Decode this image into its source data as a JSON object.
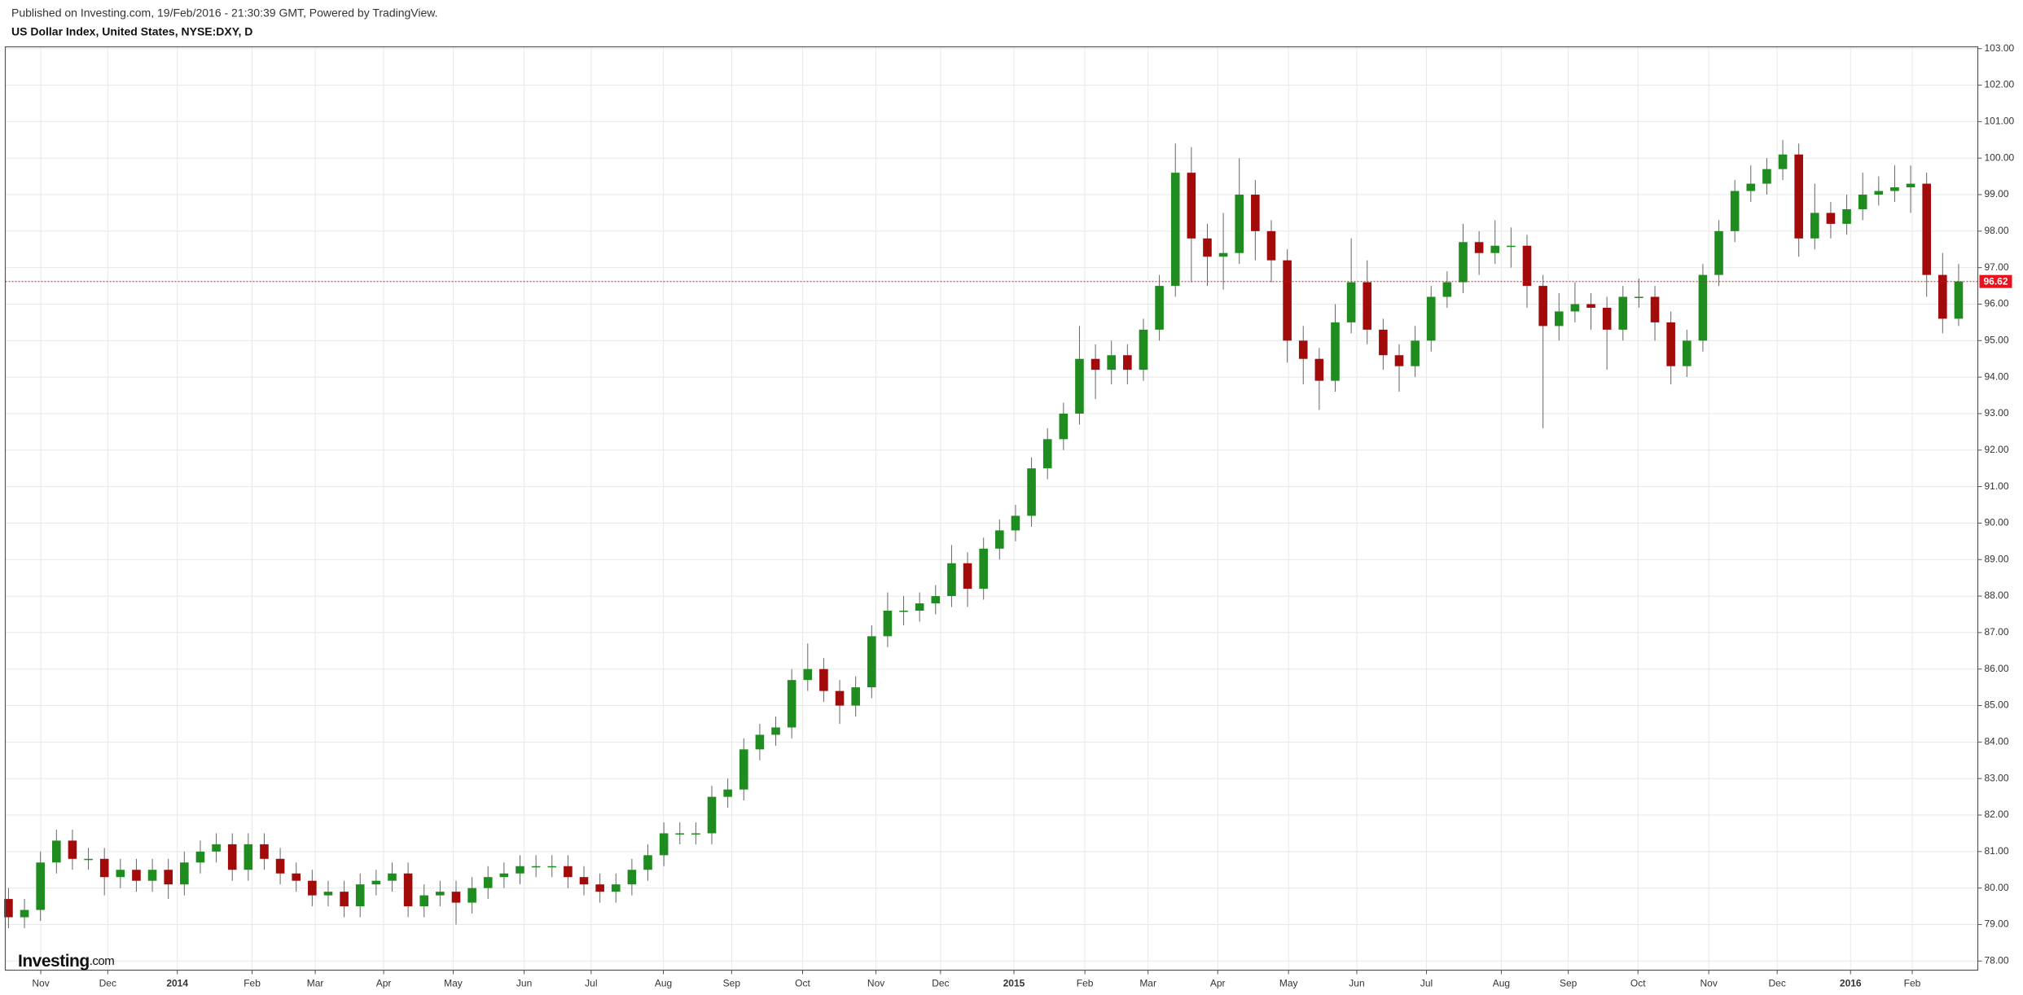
{
  "header": {
    "published": "Published on Investing.com, 19/Feb/2016 - 21:30:39 GMT, Powered by TradingView."
  },
  "logo": {
    "main": "Investing",
    "suffix": ".com"
  },
  "chart_data": {
    "type": "candlestick",
    "title": "US Dollar Index, United States, NYSE:DXY, D",
    "up_color": "#1e8c1e",
    "down_color": "#a30b0b",
    "last_price_color": "#e8111d",
    "grid": true,
    "xlim": [
      -0.2,
      123.2
    ],
    "ylim": [
      77.75,
      103.05
    ],
    "xticks": [
      {
        "value": 2.02,
        "label": "Nov"
      },
      {
        "value": 6.21,
        "label": "Dec"
      },
      {
        "value": 10.56,
        "label": "2014"
      },
      {
        "value": 15.24,
        "label": "Feb"
      },
      {
        "value": 19.19,
        "label": "Mar"
      },
      {
        "value": 23.47,
        "label": "Apr"
      },
      {
        "value": 27.82,
        "label": "May"
      },
      {
        "value": 32.26,
        "label": "Jun"
      },
      {
        "value": 36.45,
        "label": "Jul"
      },
      {
        "value": 40.97,
        "label": "Aug"
      },
      {
        "value": 45.24,
        "label": "Sep"
      },
      {
        "value": 49.68,
        "label": "Oct"
      },
      {
        "value": 54.27,
        "label": "Nov"
      },
      {
        "value": 58.31,
        "label": "Dec"
      },
      {
        "value": 62.9,
        "label": "2015"
      },
      {
        "value": 67.34,
        "label": "Feb"
      },
      {
        "value": 71.29,
        "label": "Mar"
      },
      {
        "value": 75.65,
        "label": "Apr"
      },
      {
        "value": 80.08,
        "label": "May"
      },
      {
        "value": 84.35,
        "label": "Jun"
      },
      {
        "value": 88.71,
        "label": "Jul"
      },
      {
        "value": 93.39,
        "label": "Aug"
      },
      {
        "value": 97.58,
        "label": "Sep"
      },
      {
        "value": 101.94,
        "label": "Oct"
      },
      {
        "value": 106.37,
        "label": "Nov"
      },
      {
        "value": 110.65,
        "label": "Dec"
      },
      {
        "value": 115.24,
        "label": "2016"
      },
      {
        "value": 119.1,
        "label": "Feb"
      }
    ],
    "yticks": [
      {
        "value": 78,
        "label": "78.00"
      },
      {
        "value": 79,
        "label": "79.00"
      },
      {
        "value": 80,
        "label": "80.00"
      },
      {
        "value": 81,
        "label": "81.00"
      },
      {
        "value": 82,
        "label": "82.00"
      },
      {
        "value": 83,
        "label": "83.00"
      },
      {
        "value": 84,
        "label": "84.00"
      },
      {
        "value": 85,
        "label": "85.00"
      },
      {
        "value": 86,
        "label": "86.00"
      },
      {
        "value": 87,
        "label": "87.00"
      },
      {
        "value": 88,
        "label": "88.00"
      },
      {
        "value": 89,
        "label": "89.00"
      },
      {
        "value": 90,
        "label": "90.00"
      },
      {
        "value": 91,
        "label": "91.00"
      },
      {
        "value": 92,
        "label": "92.00"
      },
      {
        "value": 93,
        "label": "93.00"
      },
      {
        "value": 94,
        "label": "94.00"
      },
      {
        "value": 95,
        "label": "95.00"
      },
      {
        "value": 96,
        "label": "96.00"
      },
      {
        "value": 97,
        "label": "97.00"
      },
      {
        "value": 98,
        "label": "98.00"
      },
      {
        "value": 99,
        "label": "99.00"
      },
      {
        "value": 100,
        "label": "100.00"
      },
      {
        "value": 101,
        "label": "101.00"
      },
      {
        "value": 102,
        "label": "102.00"
      },
      {
        "value": 103,
        "label": "103.00"
      }
    ],
    "open": [
      79.7,
      79.2,
      79.4,
      80.7,
      81.3,
      80.8,
      80.8,
      80.3,
      80.5,
      80.2,
      80.5,
      80.1,
      80.7,
      81.0,
      81.2,
      80.5,
      81.2,
      80.8,
      80.4,
      80.2,
      79.8,
      79.9,
      79.5,
      80.1,
      80.2,
      80.4,
      79.5,
      79.8,
      79.9,
      79.6,
      80.0,
      80.3,
      80.4,
      80.6,
      80.6,
      80.6,
      80.3,
      80.1,
      79.9,
      80.1,
      80.5,
      80.9,
      81.5,
      81.5,
      81.5,
      82.5,
      82.7,
      83.8,
      84.2,
      84.4,
      85.7,
      86.0,
      85.4,
      85.0,
      85.5,
      86.9,
      87.6,
      87.6,
      87.8,
      88.0,
      88.9,
      88.2,
      89.3,
      89.8,
      90.2,
      91.5,
      92.3,
      93.0,
      94.5,
      94.2,
      94.6,
      94.2,
      95.3,
      96.5,
      99.6,
      97.8,
      97.3,
      97.4,
      99.0,
      98.0,
      97.2,
      95.0,
      94.5,
      93.9,
      95.5,
      96.6,
      95.3,
      94.6,
      94.3,
      95.0,
      96.2,
      96.6,
      97.7,
      97.4,
      97.6,
      97.6,
      96.5,
      95.4,
      95.8,
      96.0,
      95.9,
      95.3,
      96.2,
      96.2,
      95.5,
      94.3,
      95.0,
      96.8,
      98.0,
      99.1,
      99.3,
      99.7,
      100.1,
      97.8,
      98.5,
      98.2,
      98.6,
      99.0,
      99.1,
      99.2,
      99.3,
      96.8,
      95.6
    ],
    "high": [
      80.0,
      79.7,
      81.0,
      81.6,
      81.6,
      81.1,
      81.1,
      80.8,
      80.8,
      80.8,
      80.8,
      81.0,
      81.3,
      81.5,
      81.5,
      81.5,
      81.5,
      81.1,
      80.7,
      80.5,
      80.2,
      80.2,
      80.4,
      80.5,
      80.7,
      80.7,
      80.1,
      80.2,
      80.2,
      80.3,
      80.6,
      80.7,
      80.9,
      80.9,
      80.9,
      80.9,
      80.6,
      80.4,
      80.4,
      80.8,
      81.2,
      81.8,
      81.8,
      81.8,
      82.8,
      83.0,
      84.1,
      84.5,
      84.7,
      86.0,
      86.7,
      86.3,
      85.7,
      85.8,
      87.2,
      88.1,
      88.0,
      88.1,
      88.3,
      89.4,
      89.2,
      89.6,
      90.1,
      90.5,
      91.8,
      92.6,
      93.3,
      95.4,
      94.9,
      95.0,
      94.9,
      95.6,
      96.8,
      100.4,
      100.3,
      98.2,
      98.5,
      100.0,
      99.4,
      98.3,
      97.5,
      95.4,
      94.8,
      96.0,
      97.8,
      97.2,
      95.6,
      94.9,
      95.4,
      96.5,
      96.9,
      98.2,
      98.0,
      98.3,
      98.1,
      97.9,
      96.8,
      96.3,
      96.6,
      96.3,
      96.2,
      96.5,
      96.7,
      96.5,
      95.8,
      95.3,
      97.1,
      98.3,
      99.4,
      99.8,
      100.0,
      100.5,
      100.4,
      99.3,
      98.8,
      99.0,
      99.6,
      99.5,
      99.8,
      99.8,
      99.6,
      97.4,
      97.1
    ],
    "low": [
      78.9,
      78.9,
      79.1,
      80.4,
      80.5,
      80.5,
      79.8,
      80.0,
      79.9,
      79.9,
      79.7,
      79.8,
      80.4,
      80.7,
      80.2,
      80.2,
      80.5,
      80.1,
      79.9,
      79.5,
      79.5,
      79.2,
      79.2,
      79.8,
      79.9,
      79.2,
      79.2,
      79.5,
      79.0,
      79.3,
      79.7,
      80.0,
      80.1,
      80.3,
      80.3,
      80.0,
      79.8,
      79.6,
      79.6,
      79.8,
      80.2,
      80.6,
      81.2,
      81.2,
      81.2,
      82.2,
      82.4,
      83.5,
      83.9,
      84.1,
      85.4,
      85.1,
      84.5,
      84.7,
      85.2,
      86.6,
      87.2,
      87.3,
      87.5,
      87.7,
      87.7,
      87.9,
      89.0,
      89.5,
      89.9,
      91.2,
      92.0,
      92.7,
      93.4,
      93.8,
      93.8,
      93.9,
      95.0,
      96.2,
      96.6,
      96.5,
      96.4,
      97.1,
      97.2,
      96.6,
      94.4,
      93.8,
      93.1,
      93.6,
      95.2,
      94.9,
      94.2,
      93.6,
      94.0,
      94.7,
      95.9,
      96.3,
      96.8,
      97.1,
      97.0,
      95.9,
      92.6,
      95.0,
      95.5,
      95.3,
      94.2,
      95.0,
      95.9,
      95.0,
      93.8,
      94.0,
      94.7,
      96.5,
      97.7,
      98.8,
      99.0,
      99.4,
      97.3,
      97.5,
      97.8,
      97.9,
      98.3,
      98.7,
      98.8,
      98.5,
      96.2,
      95.2,
      95.4
    ],
    "close": [
      79.2,
      79.4,
      80.7,
      81.3,
      80.8,
      80.8,
      80.3,
      80.5,
      80.2,
      80.5,
      80.1,
      80.7,
      81.0,
      81.2,
      80.5,
      81.2,
      80.8,
      80.4,
      80.2,
      79.8,
      79.9,
      79.5,
      80.1,
      80.2,
      80.4,
      79.5,
      79.8,
      79.9,
      79.6,
      80.0,
      80.3,
      80.4,
      80.6,
      80.6,
      80.6,
      80.3,
      80.1,
      79.9,
      80.1,
      80.5,
      80.9,
      81.5,
      81.5,
      81.5,
      82.5,
      82.7,
      83.8,
      84.2,
      84.4,
      85.7,
      86.0,
      85.4,
      85.0,
      85.5,
      86.9,
      87.6,
      87.6,
      87.8,
      88.0,
      88.9,
      88.2,
      89.3,
      89.8,
      90.2,
      91.5,
      92.3,
      93.0,
      94.5,
      94.2,
      94.6,
      94.2,
      95.3,
      96.5,
      99.6,
      97.8,
      97.3,
      97.4,
      99.0,
      98.0,
      97.2,
      95.0,
      94.5,
      93.9,
      95.5,
      96.6,
      95.3,
      94.6,
      94.3,
      95.0,
      96.2,
      96.6,
      97.7,
      97.4,
      97.6,
      97.6,
      96.5,
      95.4,
      95.8,
      96.0,
      95.9,
      95.3,
      96.2,
      96.2,
      95.5,
      94.3,
      95.0,
      96.8,
      98.0,
      99.1,
      99.3,
      99.7,
      100.1,
      97.8,
      98.5,
      98.2,
      98.6,
      99.0,
      99.1,
      99.2,
      99.3,
      96.8,
      95.6,
      96.62
    ]
  }
}
